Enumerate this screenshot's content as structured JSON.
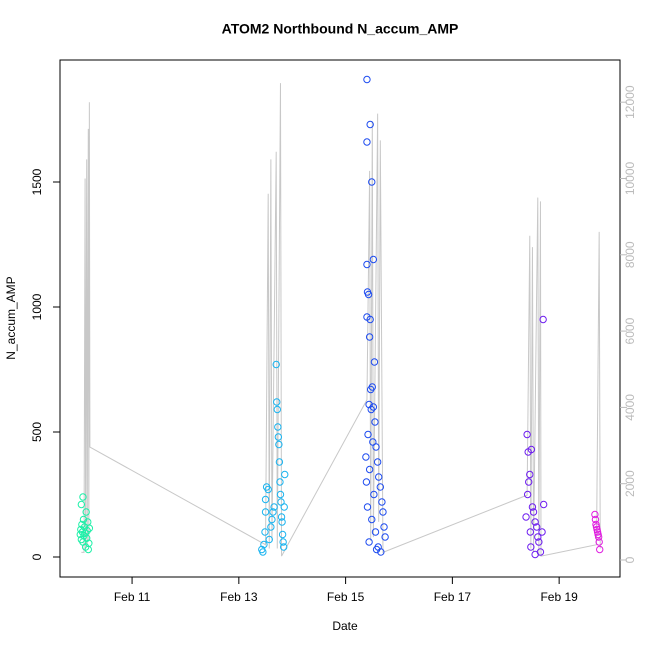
{
  "chart_data": {
    "type": "scatter",
    "title": "ATOM2 Northbound N_accum_AMP",
    "x_label": "Date",
    "y_label": "N_accum_AMP",
    "xlim": [
      9.65,
      20.14
    ],
    "xticks": [
      {
        "value": 11,
        "label": "Feb 11"
      },
      {
        "value": 13,
        "label": "Feb 13"
      },
      {
        "value": 15,
        "label": "Feb 15"
      },
      {
        "value": 17,
        "label": "Feb 17"
      },
      {
        "value": 19,
        "label": "Feb 19"
      }
    ],
    "ylim": [
      -80,
      1988
    ],
    "yticks": [
      0,
      500,
      1000,
      1500
    ],
    "y2lim": [
      -446,
      13106
    ],
    "y2ticks": [
      0,
      2000,
      4000,
      6000,
      8000,
      10000,
      12000
    ],
    "series": [
      {
        "color": "#1ef0a8",
        "x": [
          10.03,
          10.04,
          10.05,
          10.06,
          10.07,
          10.08,
          10.09,
          10.1,
          10.11,
          10.12,
          10.13,
          10.14,
          10.15,
          10.16,
          10.17,
          10.18,
          10.05,
          10.08,
          10.19,
          10.2
        ],
        "values": [
          90,
          110,
          70,
          130,
          100,
          60,
          150,
          85,
          120,
          95,
          40,
          180,
          75,
          105,
          140,
          30,
          210,
          240,
          55,
          115
        ]
      },
      {
        "color": "#1ab4f0",
        "x": [
          13.43,
          13.45,
          13.47,
          13.49,
          13.5,
          13.52,
          13.55,
          13.57,
          13.6,
          13.62,
          13.64,
          13.66,
          13.7,
          13.71,
          13.72,
          13.73,
          13.74,
          13.75,
          13.76,
          13.77,
          13.78,
          13.79,
          13.8,
          13.81,
          13.82,
          13.83,
          13.84,
          13.85,
          13.86,
          13.5
        ],
        "values": [
          30,
          20,
          50,
          100,
          230,
          280,
          270,
          70,
          120,
          150,
          180,
          200,
          770,
          620,
          590,
          520,
          480,
          450,
          380,
          300,
          250,
          220,
          160,
          140,
          90,
          60,
          40,
          200,
          330,
          180
        ]
      },
      {
        "color": "#1e4cf0",
        "x": [
          15.4,
          15.46,
          15.4,
          15.49,
          15.4,
          15.41,
          15.43,
          15.4,
          15.46,
          15.45,
          15.54,
          15.5,
          15.47,
          15.44,
          15.52,
          15.48,
          15.55,
          15.42,
          15.51,
          15.57,
          15.38,
          15.6,
          15.45,
          15.62,
          15.39,
          15.65,
          15.53,
          15.68,
          15.41,
          15.7,
          15.49,
          15.72,
          15.56,
          15.74,
          15.44,
          15.61,
          15.58,
          15.66,
          15.52
        ],
        "values": [
          1910,
          1730,
          1660,
          1500,
          1170,
          1060,
          1050,
          960,
          950,
          880,
          780,
          680,
          670,
          610,
          600,
          590,
          540,
          490,
          460,
          440,
          400,
          380,
          350,
          320,
          300,
          280,
          250,
          220,
          200,
          180,
          150,
          120,
          100,
          80,
          60,
          40,
          30,
          20,
          1190
        ]
      },
      {
        "color": "#6e1ef0",
        "x": [
          18.4,
          18.42,
          18.48,
          18.45,
          18.43,
          18.41,
          18.5,
          18.52,
          18.38,
          18.55,
          18.58,
          18.46,
          18.6,
          18.62,
          18.47,
          18.65,
          18.55,
          18.7,
          18.71,
          18.68
        ],
        "values": [
          490,
          420,
          430,
          330,
          300,
          250,
          200,
          180,
          160,
          140,
          120,
          100,
          80,
          60,
          40,
          20,
          10,
          950,
          210,
          100
        ]
      },
      {
        "color": "#e01ee0",
        "x": [
          19.67,
          19.68,
          19.69,
          19.7,
          19.71,
          19.72,
          19.73,
          19.74,
          19.75,
          19.76
        ],
        "values": [
          170,
          150,
          130,
          120,
          110,
          100,
          90,
          80,
          60,
          30
        ]
      },
      {
        "color": "#c8c8c8",
        "axis": "y2",
        "x": [
          10.05,
          10.1,
          10.12,
          10.13,
          10.15,
          10.16,
          10.18,
          10.19,
          10.2,
          10.21,
          13.5,
          13.55,
          13.57,
          13.6,
          13.62,
          13.7,
          13.72,
          13.78,
          13.8,
          15.4,
          15.45,
          15.47,
          15.5,
          15.52,
          15.6,
          15.62,
          15.65,
          15.7,
          18.4,
          18.45,
          18.47,
          18.5,
          18.52,
          18.6,
          18.62,
          18.65,
          18.66,
          19.7,
          19.75,
          19.77
        ],
        "values": [
          200,
          200,
          10000,
          300,
          10500,
          400,
          11300,
          500,
          12000,
          2960,
          400,
          9600,
          300,
          10500,
          500,
          10700,
          300,
          12500,
          100,
          4200,
          10200,
          500,
          11500,
          600,
          11700,
          1000,
          11000,
          200,
          1700,
          8500,
          300,
          8200,
          200,
          9500,
          100,
          9400,
          100,
          400,
          8600,
          300
        ]
      }
    ]
  }
}
